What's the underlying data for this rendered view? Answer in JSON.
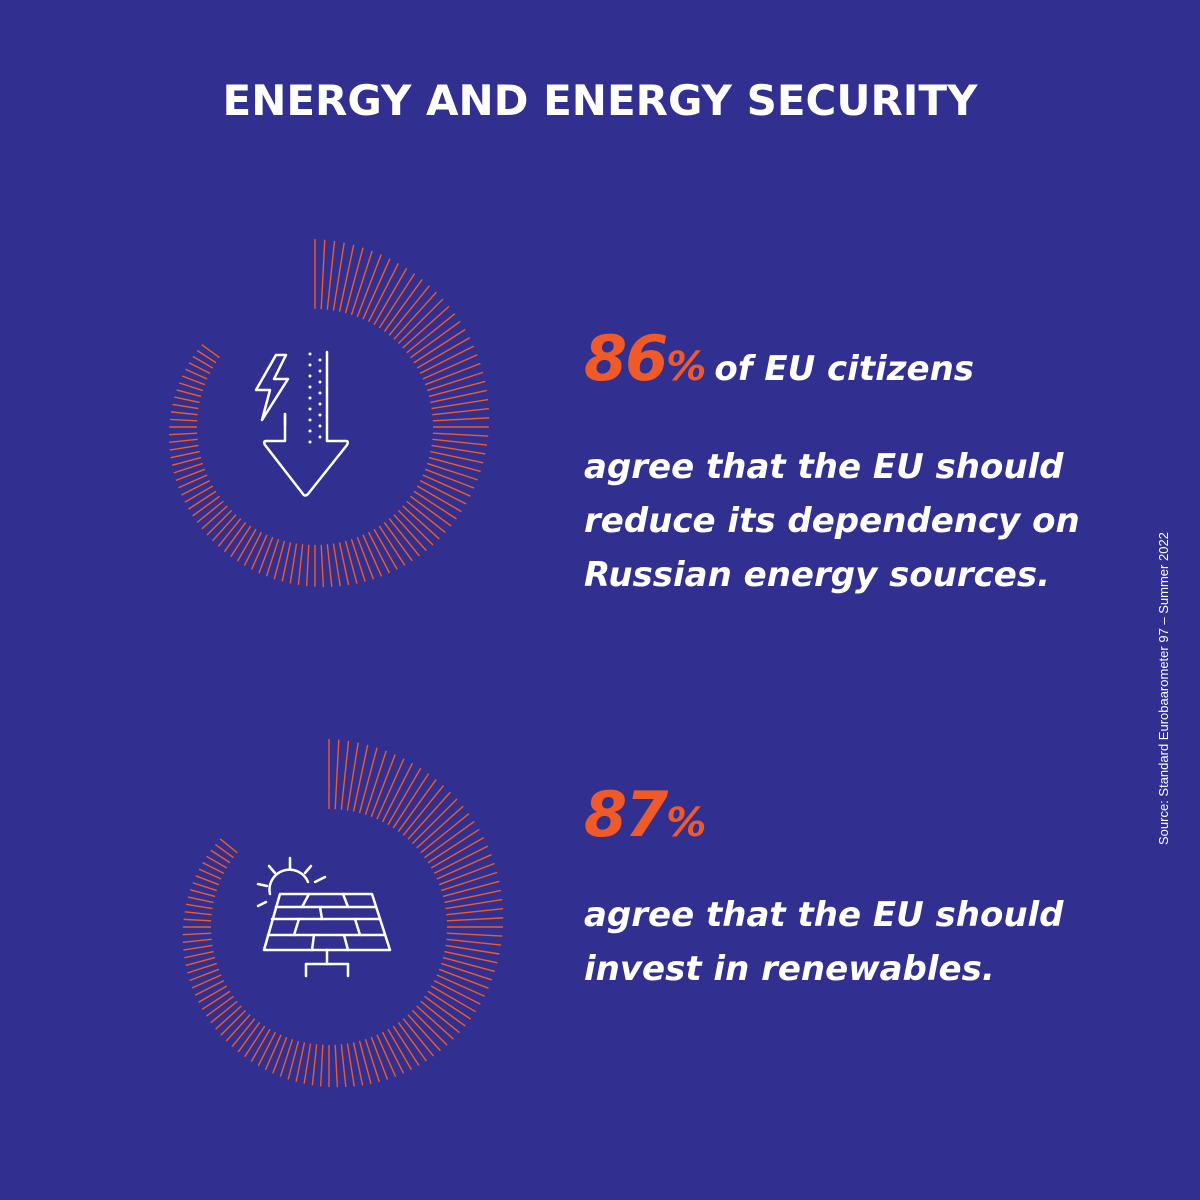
{
  "title": "ENERGY AND ENERGY SECURITY",
  "colors": {
    "background": "#313090",
    "accent": "#f05a28",
    "text": "#ffffff"
  },
  "stats": [
    {
      "value": 86,
      "number": "86",
      "percent_sign": "%",
      "lead": "of EU citizens",
      "lines": [
        "agree that the EU should",
        "reduce its dependency on",
        "Russian energy sources."
      ],
      "icon": "arrow-down-lightning-icon"
    },
    {
      "value": 87,
      "number": "87",
      "percent_sign": "%",
      "lead": "",
      "lines": [
        "agree that the EU should",
        "invest in renewables."
      ],
      "icon": "solar-panel-icon"
    }
  ],
  "source": "Source:  Standard Eurobaarometer 97 – Summer 2022"
}
